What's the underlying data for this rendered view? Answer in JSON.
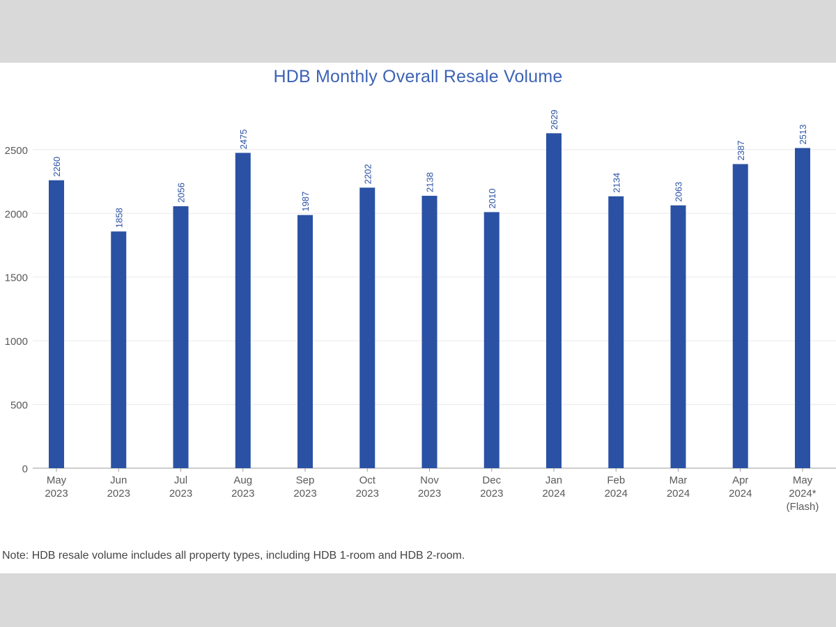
{
  "chart_data": {
    "type": "bar",
    "title": "HDB Monthly Overall Resale Volume",
    "categories": [
      [
        "May",
        "2023"
      ],
      [
        "Jun",
        "2023"
      ],
      [
        "Jul",
        "2023"
      ],
      [
        "Aug",
        "2023"
      ],
      [
        "Sep",
        "2023"
      ],
      [
        "Oct",
        "2023"
      ],
      [
        "Nov",
        "2023"
      ],
      [
        "Dec",
        "2023"
      ],
      [
        "Jan",
        "2024"
      ],
      [
        "Feb",
        "2024"
      ],
      [
        "Mar",
        "2024"
      ],
      [
        "Apr",
        "2024"
      ],
      [
        "May",
        "2024*",
        "(Flash)"
      ]
    ],
    "values": [
      2260,
      1858,
      2056,
      2475,
      1987,
      2202,
      2138,
      2010,
      2629,
      2134,
      2063,
      2387,
      2513
    ],
    "data_labels": [
      "2260",
      "1858",
      "2056",
      "2475",
      "1987",
      "2202",
      "2138",
      "2010",
      "2629",
      "2134",
      "2063",
      "2387",
      "2513"
    ],
    "xlabel": "",
    "ylabel": "",
    "ylim": [
      0,
      2800
    ],
    "yticks": [
      0,
      500,
      1000,
      1500,
      2000,
      2500
    ],
    "grid": true,
    "legend": "none",
    "colors": {
      "bar": "#2a51a3",
      "title": "#3d63b5",
      "data_label": "#2a51a3",
      "tick_label": "#595959",
      "grid": "#e8e8e8"
    }
  },
  "note": "Note: HDB resale volume includes all property types, including HDB 1-room and HDB 2-room."
}
